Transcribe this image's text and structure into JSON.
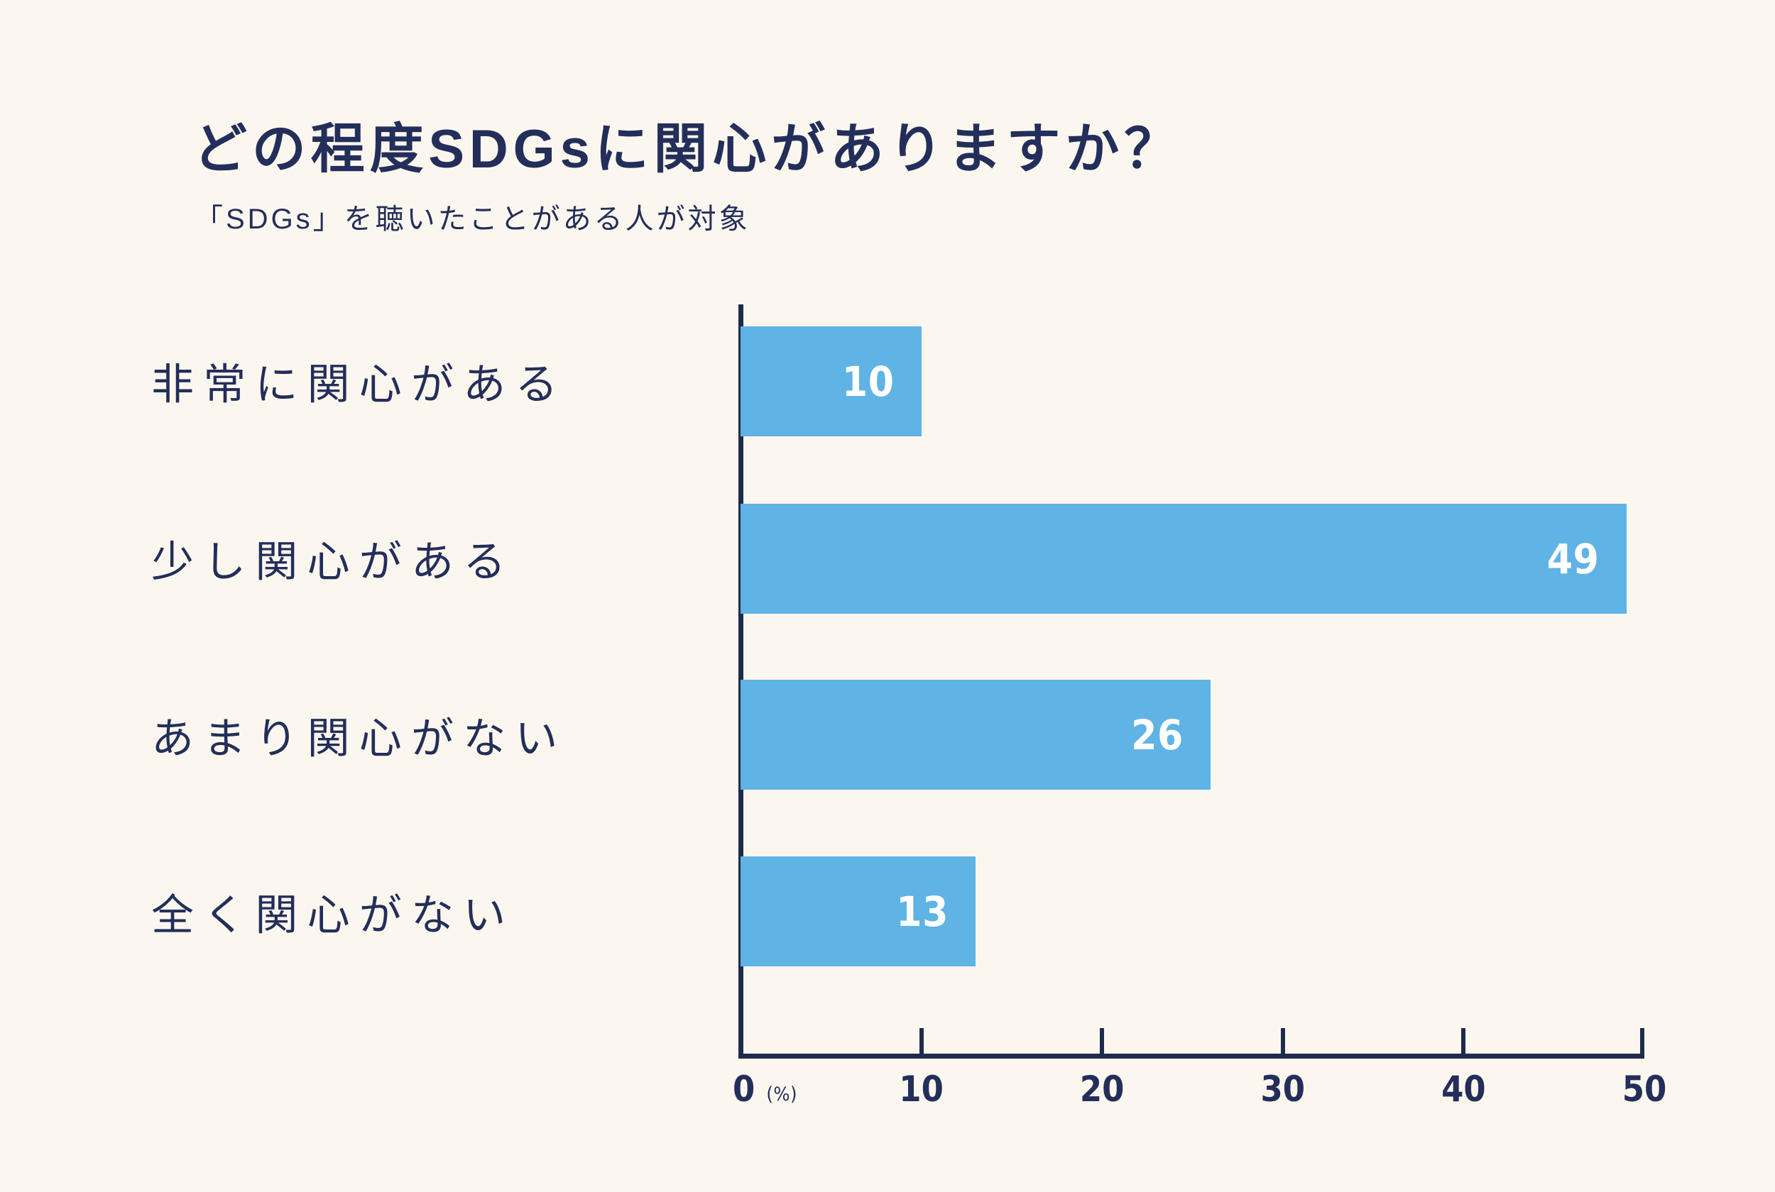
{
  "header": {
    "title": "どの程度SDGsに関心がありますか？",
    "subtitle": "「SDGs」を聴いたことがある人が対象"
  },
  "chart_data": {
    "type": "bar",
    "orientation": "horizontal",
    "title": "どの程度SDGsに関心がありますか？",
    "subtitle": "「SDGs」を聴いたことがある人が対象",
    "categories": [
      "非常に関心がある",
      "少し関心がある",
      "あまり関心がない",
      "全く関心がない"
    ],
    "values": [
      10,
      49,
      26,
      13
    ],
    "xlim": [
      0,
      50
    ],
    "x_ticks": [
      0,
      10,
      20,
      30,
      40,
      50
    ],
    "x_unit": "(%)",
    "grid": false,
    "legend": false,
    "colors": {
      "bar": "#5FB3E5",
      "text": "#232E5A",
      "axis": "#1F2A4D",
      "background": "#FBF7EF",
      "value_label": "#FFFFFF"
    }
  }
}
